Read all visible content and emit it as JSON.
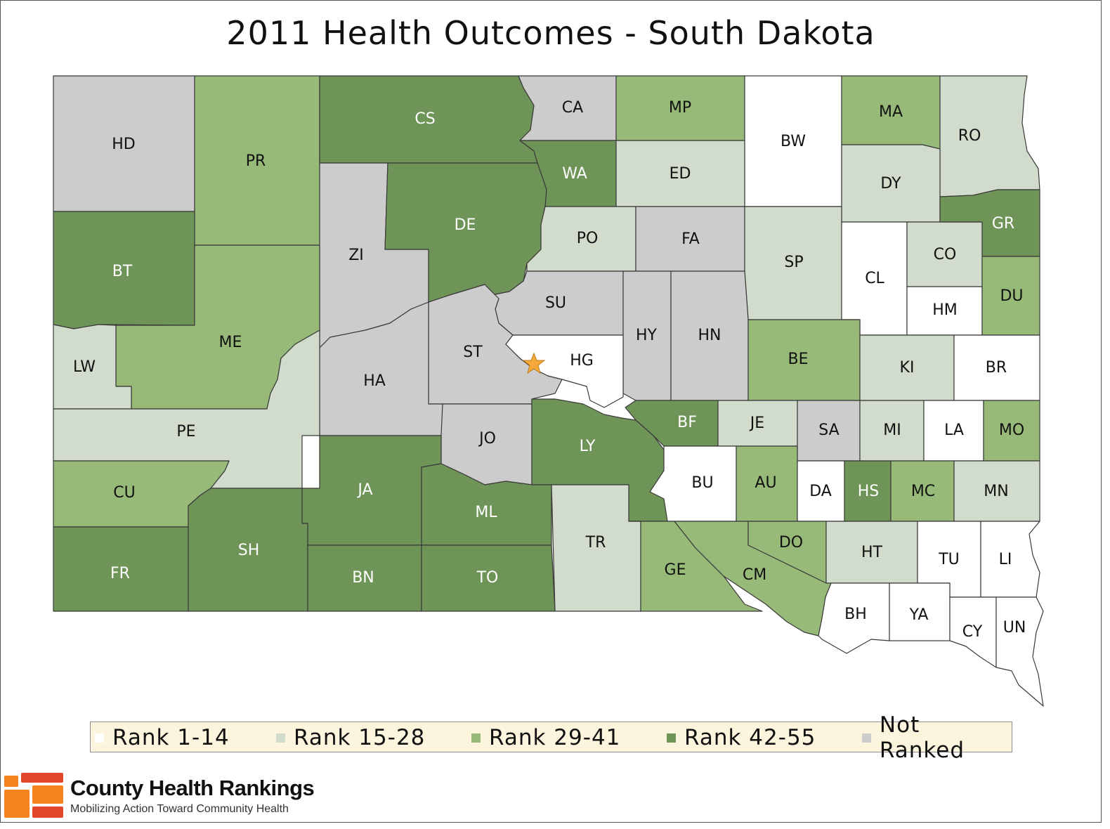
{
  "title": "2011 Health Outcomes - South Dakota",
  "colors": {
    "rank_1_14": "#ffffff",
    "rank_15_28": "#d1dccc",
    "rank_29_41": "#97ba79",
    "rank_42_55": "#6f9457",
    "not_ranked": "#cccccc",
    "county_border": "#3a3a3a",
    "legend_bg": "#fcf4dc",
    "capital_star": "#f4a93a",
    "logo_orange": "#f5821f",
    "logo_red": "#e1462b"
  },
  "legend": [
    {
      "label": "Rank 1-14",
      "color": "#ffffff"
    },
    {
      "label": "Rank 15-28",
      "color": "#d1dccc"
    },
    {
      "label": "Rank 29-41",
      "color": "#97ba79"
    },
    {
      "label": "Rank 42-55",
      "color": "#6f9457"
    },
    {
      "label": "Not Ranked",
      "color": "#cccccc"
    }
  ],
  "counties": [
    {
      "code": "HD",
      "category": "not_ranked"
    },
    {
      "code": "PR",
      "category": "rank_29_41"
    },
    {
      "code": "CS",
      "category": "rank_42_55"
    },
    {
      "code": "CA",
      "category": "not_ranked"
    },
    {
      "code": "MP",
      "category": "rank_29_41"
    },
    {
      "code": "BW",
      "category": "rank_1_14"
    },
    {
      "code": "MA",
      "category": "rank_29_41"
    },
    {
      "code": "RO",
      "category": "rank_15_28"
    },
    {
      "code": "BT",
      "category": "rank_42_55"
    },
    {
      "code": "WA",
      "category": "rank_42_55"
    },
    {
      "code": "ED",
      "category": "rank_15_28"
    },
    {
      "code": "DY",
      "category": "rank_15_28"
    },
    {
      "code": "ZI",
      "category": "not_ranked"
    },
    {
      "code": "DE",
      "category": "rank_42_55"
    },
    {
      "code": "PO",
      "category": "rank_15_28"
    },
    {
      "code": "FA",
      "category": "not_ranked"
    },
    {
      "code": "SP",
      "category": "rank_15_28"
    },
    {
      "code": "CL",
      "category": "rank_1_14"
    },
    {
      "code": "CO",
      "category": "rank_15_28"
    },
    {
      "code": "GR",
      "category": "rank_42_55"
    },
    {
      "code": "HM",
      "category": "rank_1_14"
    },
    {
      "code": "DU",
      "category": "rank_29_41"
    },
    {
      "code": "ME",
      "category": "rank_29_41"
    },
    {
      "code": "LW",
      "category": "rank_15_28"
    },
    {
      "code": "SU",
      "category": "not_ranked"
    },
    {
      "code": "HY",
      "category": "not_ranked"
    },
    {
      "code": "HN",
      "category": "not_ranked"
    },
    {
      "code": "ST",
      "category": "not_ranked"
    },
    {
      "code": "HG",
      "category": "rank_1_14"
    },
    {
      "code": "HA",
      "category": "not_ranked"
    },
    {
      "code": "BE",
      "category": "rank_29_41"
    },
    {
      "code": "KI",
      "category": "rank_15_28"
    },
    {
      "code": "BR",
      "category": "rank_1_14"
    },
    {
      "code": "PE",
      "category": "rank_15_28"
    },
    {
      "code": "JO",
      "category": "not_ranked"
    },
    {
      "code": "LY",
      "category": "rank_42_55"
    },
    {
      "code": "BF",
      "category": "rank_42_55"
    },
    {
      "code": "JE",
      "category": "rank_15_28"
    },
    {
      "code": "SA",
      "category": "not_ranked"
    },
    {
      "code": "MI",
      "category": "rank_15_28"
    },
    {
      "code": "LA",
      "category": "rank_1_14"
    },
    {
      "code": "MO",
      "category": "rank_29_41"
    },
    {
      "code": "CU",
      "category": "rank_29_41"
    },
    {
      "code": "JA",
      "category": "rank_42_55"
    },
    {
      "code": "ML",
      "category": "rank_42_55"
    },
    {
      "code": "BU",
      "category": "rank_1_14"
    },
    {
      "code": "AU",
      "category": "rank_29_41"
    },
    {
      "code": "DA",
      "category": "rank_1_14"
    },
    {
      "code": "HS",
      "category": "rank_42_55"
    },
    {
      "code": "MC",
      "category": "rank_29_41"
    },
    {
      "code": "MN",
      "category": "rank_15_28"
    },
    {
      "code": "SH",
      "category": "rank_42_55"
    },
    {
      "code": "FR",
      "category": "rank_42_55"
    },
    {
      "code": "BN",
      "category": "rank_42_55"
    },
    {
      "code": "TO",
      "category": "rank_42_55"
    },
    {
      "code": "TR",
      "category": "rank_15_28"
    },
    {
      "code": "GE",
      "category": "rank_29_41"
    },
    {
      "code": "CM",
      "category": "rank_29_41"
    },
    {
      "code": "DO",
      "category": "rank_29_41"
    },
    {
      "code": "HT",
      "category": "rank_15_28"
    },
    {
      "code": "TU",
      "category": "rank_1_14"
    },
    {
      "code": "LI",
      "category": "rank_1_14"
    },
    {
      "code": "BH",
      "category": "rank_1_14"
    },
    {
      "code": "YA",
      "category": "rank_1_14"
    },
    {
      "code": "CY",
      "category": "rank_1_14"
    },
    {
      "code": "UN",
      "category": "rank_1_14"
    }
  ],
  "capital_icon": "star-icon",
  "brand": {
    "name": "County Health Rankings",
    "tagline": "Mobilizing Action Toward Community Health"
  }
}
